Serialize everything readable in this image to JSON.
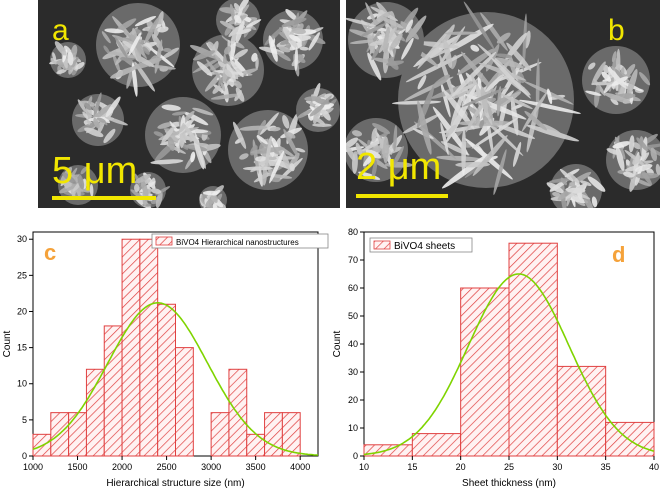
{
  "figure": {
    "panel_a": {
      "letter": "a",
      "scale_text": "5 μm"
    },
    "panel_b": {
      "letter": "b",
      "scale_text": "2 μm"
    }
  },
  "chart_data": [
    {
      "type": "bar",
      "panel_letter": "c",
      "xlabel": "Hierarchical structure size (nm)",
      "ylabel": "Count",
      "legend": "BiVO4 Hierarchical nanostructures",
      "legend_placement": "top-right",
      "xlim": [
        1000,
        4200
      ],
      "ylim": [
        0,
        31
      ],
      "xticks": [
        1000,
        1500,
        2000,
        2500,
        3000,
        3500,
        4000
      ],
      "yticks": [
        0,
        5,
        10,
        15,
        20,
        25,
        30
      ],
      "bins": [
        {
          "start": 1000,
          "end": 1200,
          "count": 3
        },
        {
          "start": 1200,
          "end": 1400,
          "count": 6
        },
        {
          "start": 1400,
          "end": 1600,
          "count": 6
        },
        {
          "start": 1600,
          "end": 1800,
          "count": 12
        },
        {
          "start": 1800,
          "end": 2000,
          "count": 18
        },
        {
          "start": 2000,
          "end": 2200,
          "count": 30
        },
        {
          "start": 2200,
          "end": 2400,
          "count": 30
        },
        {
          "start": 2400,
          "end": 2600,
          "count": 21
        },
        {
          "start": 2600,
          "end": 2800,
          "count": 15
        },
        {
          "start": 2800,
          "end": 3000,
          "count": 0
        },
        {
          "start": 3000,
          "end": 3200,
          "count": 6
        },
        {
          "start": 3200,
          "end": 3400,
          "count": 12
        },
        {
          "start": 3400,
          "end": 3600,
          "count": 3
        },
        {
          "start": 3600,
          "end": 3800,
          "count": 6
        },
        {
          "start": 3800,
          "end": 4000,
          "count": 6
        }
      ],
      "fit": {
        "type": "gaussian",
        "mean": 2400,
        "sigma": 560,
        "peak": 21.2
      },
      "bar_color": "#e04040",
      "fit_color": "#7fd400"
    },
    {
      "type": "bar",
      "panel_letter": "d",
      "xlabel": "Sheet thickness (nm)",
      "ylabel": "Count",
      "legend": "BiVO4 sheets",
      "legend_placement": "top-left",
      "xlim": [
        10,
        40
      ],
      "ylim": [
        0,
        80
      ],
      "xticks": [
        10,
        15,
        20,
        25,
        30,
        35,
        40
      ],
      "yticks": [
        0,
        10,
        20,
        30,
        40,
        50,
        60,
        70,
        80
      ],
      "bins": [
        {
          "start": 10,
          "end": 15,
          "count": 4
        },
        {
          "start": 15,
          "end": 20,
          "count": 8
        },
        {
          "start": 20,
          "end": 25,
          "count": 60
        },
        {
          "start": 25,
          "end": 30,
          "count": 76
        },
        {
          "start": 30,
          "end": 35,
          "count": 32
        },
        {
          "start": 35,
          "end": 40,
          "count": 12
        }
      ],
      "fit": {
        "type": "gaussian",
        "mean": 26,
        "sigma": 5.2,
        "peak": 65
      },
      "bar_color": "#e04040",
      "fit_color": "#7fd400"
    }
  ]
}
